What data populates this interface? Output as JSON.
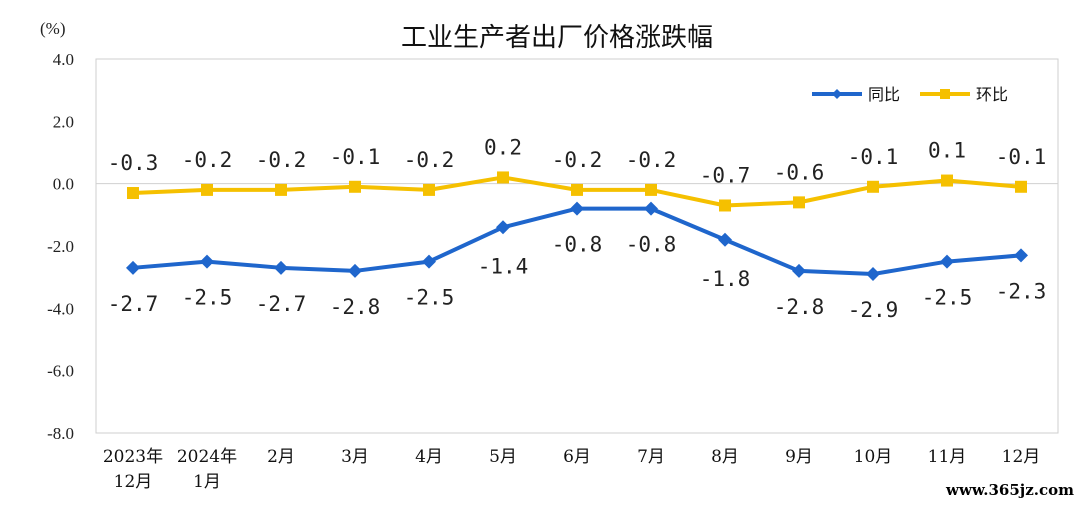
{
  "chart_data": {
    "type": "line",
    "title": "工业生产者出厂价格涨跌幅",
    "unit_label": "(%)",
    "categories": [
      [
        "2023年",
        "12月"
      ],
      [
        "2024年",
        "1月"
      ],
      [
        "2月"
      ],
      [
        "3月"
      ],
      [
        "4月"
      ],
      [
        "5月"
      ],
      [
        "6月"
      ],
      [
        "7月"
      ],
      [
        "8月"
      ],
      [
        "9月"
      ],
      [
        "10月"
      ],
      [
        "11月"
      ],
      [
        "12月"
      ]
    ],
    "yticks": [
      "4.0",
      "2.0",
      "0.0",
      "-2.0",
      "-4.0",
      "-6.0",
      "-8.0"
    ],
    "ylim": [
      -8,
      4
    ],
    "grid": false,
    "legend_position": "top-right",
    "series": [
      {
        "name": "同比",
        "color": "#1f66cc",
        "marker": "diamond",
        "values": [
          -2.7,
          -2.5,
          -2.7,
          -2.8,
          -2.5,
          -1.4,
          -0.8,
          -0.8,
          -1.8,
          -2.8,
          -2.9,
          -2.5,
          -2.3
        ],
        "labels": [
          "-2.7",
          "-2.5",
          "-2.7",
          "-2.8",
          "-2.5",
          "-1.4",
          "-0.8",
          "-0.8",
          "-1.8",
          "-2.8",
          "-2.9",
          "-2.5",
          "-2.3"
        ]
      },
      {
        "name": "环比",
        "color": "#f5c000",
        "marker": "square",
        "values": [
          -0.3,
          -0.2,
          -0.2,
          -0.1,
          -0.2,
          0.2,
          -0.2,
          -0.2,
          -0.7,
          -0.6,
          -0.1,
          0.1,
          -0.1
        ],
        "labels": [
          "-0.3",
          "-0.2",
          "-0.2",
          "-0.1",
          "-0.2",
          "0.2",
          "-0.2",
          "-0.2",
          "-0.7",
          "-0.6",
          "-0.1",
          "0.1",
          "-0.1"
        ]
      }
    ]
  },
  "watermark": "www.365jz.com"
}
